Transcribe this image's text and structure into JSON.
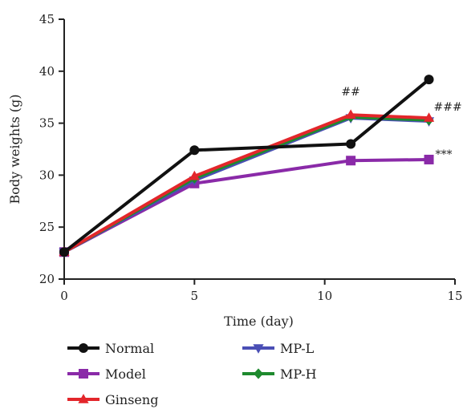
{
  "chart_data": {
    "type": "line",
    "xlabel": "Time (day)",
    "ylabel": "Body weights (g)",
    "xlim": [
      0,
      15
    ],
    "ylim": [
      20,
      45
    ],
    "xticks": [
      0,
      5,
      10,
      15
    ],
    "yticks": [
      20,
      25,
      30,
      35,
      40,
      45
    ],
    "xtick_labels": [
      "0",
      "5",
      "10",
      "15"
    ],
    "ytick_labels": [
      "20",
      "25",
      "30",
      "35",
      "40",
      "45"
    ],
    "grid": false,
    "legend_position": "bottom",
    "series": [
      {
        "name": "Normal",
        "color": "#111111",
        "marker": "circle",
        "x": [
          0,
          5,
          11,
          14
        ],
        "y": [
          22.6,
          32.4,
          33.0,
          39.2
        ]
      },
      {
        "name": "Model",
        "color": "#8a2aa8",
        "marker": "square",
        "x": [
          0,
          5,
          11,
          14
        ],
        "y": [
          22.6,
          29.2,
          31.4,
          31.5
        ]
      },
      {
        "name": "Ginseng",
        "color": "#e3262b",
        "marker": "triangle-up",
        "x": [
          0,
          5,
          11,
          14
        ],
        "y": [
          22.6,
          29.9,
          35.8,
          35.5
        ]
      },
      {
        "name": "MP-L",
        "color": "#4a4fb5",
        "marker": "triangle-down",
        "x": [
          0,
          5,
          11,
          14
        ],
        "y": [
          22.6,
          29.5,
          35.5,
          35.2
        ]
      },
      {
        "name": "MP-H",
        "color": "#1e8a2e",
        "marker": "diamond",
        "x": [
          0,
          5,
          11,
          14
        ],
        "y": [
          22.6,
          29.7,
          35.6,
          35.3
        ]
      }
    ],
    "annotations": [
      {
        "text": "##",
        "x": 11,
        "y": 35.8
      },
      {
        "text": "###",
        "x": 14,
        "y": 35.5
      },
      {
        "text": "***",
        "x": 14,
        "y": 31.5
      }
    ]
  }
}
